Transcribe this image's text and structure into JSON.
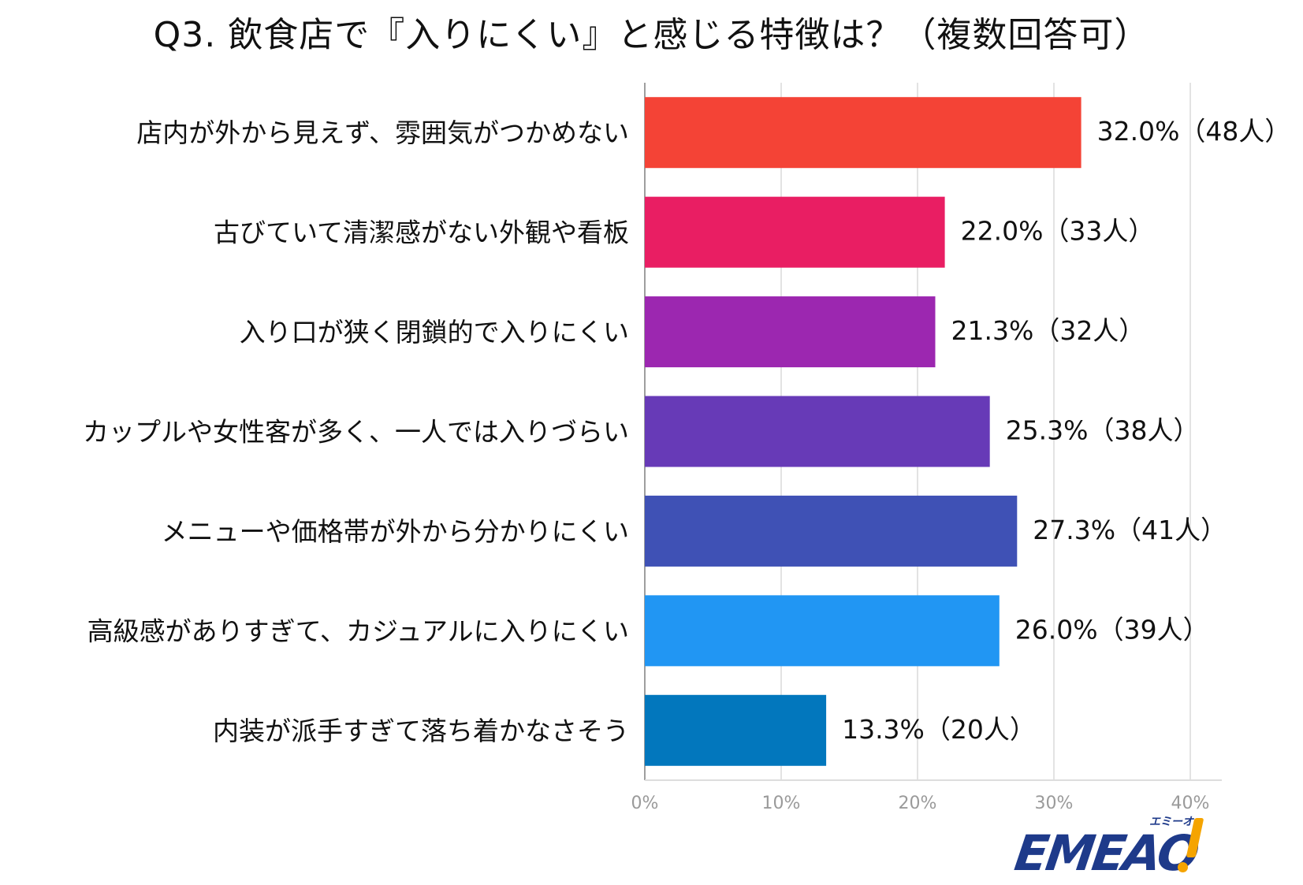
{
  "chart_data": {
    "type": "bar",
    "orientation": "horizontal",
    "title": "Q3. 飲食店で『入りにくい』と感じる特徴は？（複数回答可）",
    "xlabel": "",
    "ylabel": "",
    "xlim": [
      0,
      40
    ],
    "grid": true,
    "x_ticks": [
      "0%",
      "10%",
      "20%",
      "30%",
      "40%"
    ],
    "categories": [
      "店内が外から見えず、雰囲気がつかめない",
      "古びていて清潔感がない外観や看板",
      "入り口が狭く閉鎖的で入りにくい",
      "カップルや女性客が多く、一人では入りづらい",
      "メニューや価格帯が外から分かりにくい",
      "高級感がありすぎて、カジュアルに入りにくい",
      "内装が派手すぎて落ち着かなさそう"
    ],
    "values": [
      32.0,
      22.0,
      21.3,
      25.3,
      27.3,
      26.0,
      13.3
    ],
    "data_labels": [
      "32.0%（48人）",
      "22.0%（33人）",
      "21.3%（32人）",
      "25.3%（38人）",
      "27.3%（41人）",
      "26.0%（39人）",
      "13.3%（20人）"
    ],
    "bar_colors": [
      "#f44336",
      "#e91e63",
      "#9c27b0",
      "#673ab7",
      "#3f51b5",
      "#2196f3",
      "#0277bd"
    ]
  },
  "logo": {
    "text": "EMEAO",
    "kana": "エミーオ",
    "accent_color": "#f5a400",
    "brand_color": "#1e3a8a"
  }
}
